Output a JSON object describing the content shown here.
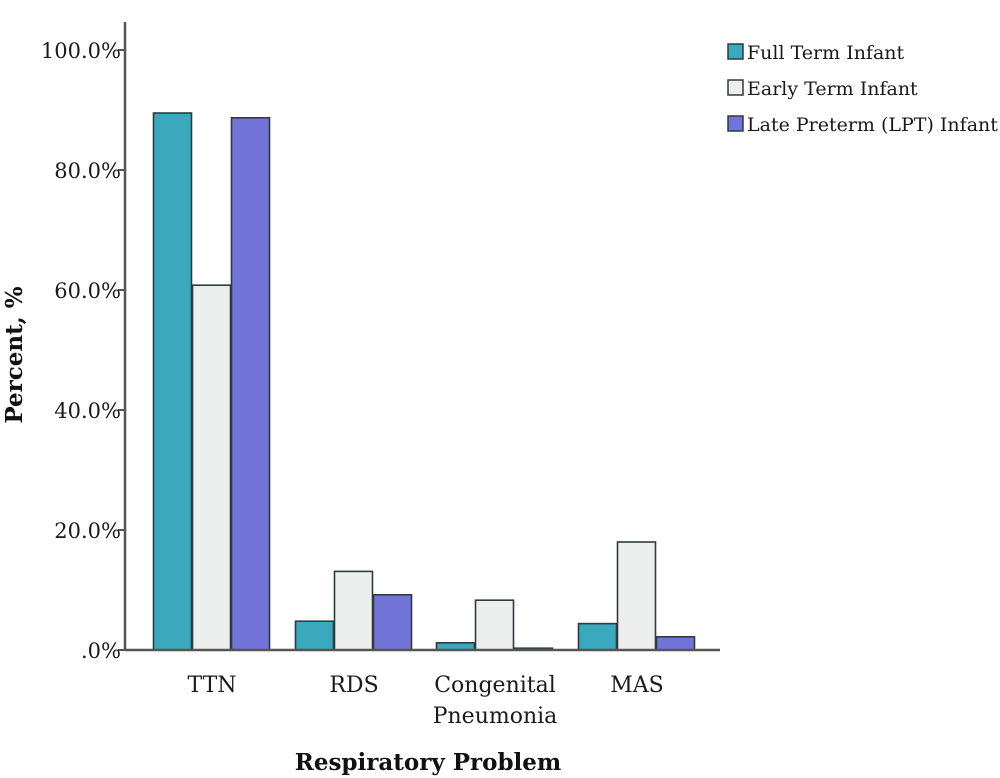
{
  "chart_data": {
    "type": "bar",
    "title": "",
    "xlabel": "Respiratory Problem",
    "ylabel": "Percent, %",
    "ylim": [
      0,
      100
    ],
    "ytick_values": [
      0,
      20,
      40,
      60,
      80,
      100
    ],
    "ytick_labels": [
      ".0%",
      "20.0%",
      "40.0%",
      "60.0%",
      "80.0%",
      "100.0%"
    ],
    "categories": [
      [
        "TTN"
      ],
      [
        "RDS"
      ],
      [
        "Congenital",
        "Pneumonia"
      ],
      [
        "MAS"
      ]
    ],
    "series": [
      {
        "name": "Full Term Infant",
        "color": "#3aa9bd",
        "values": [
          89.5,
          4.8,
          1.2,
          4.4
        ]
      },
      {
        "name": "Early Term Infant",
        "color": "#eceeee",
        "values": [
          60.8,
          13.1,
          8.3,
          18.0
        ]
      },
      {
        "name": "Late Preterm (LPT) Infant",
        "color": "#7274d8",
        "values": [
          88.7,
          9.2,
          0.3,
          2.2
        ]
      }
    ],
    "grid": false,
    "legend_position": "top-right"
  }
}
